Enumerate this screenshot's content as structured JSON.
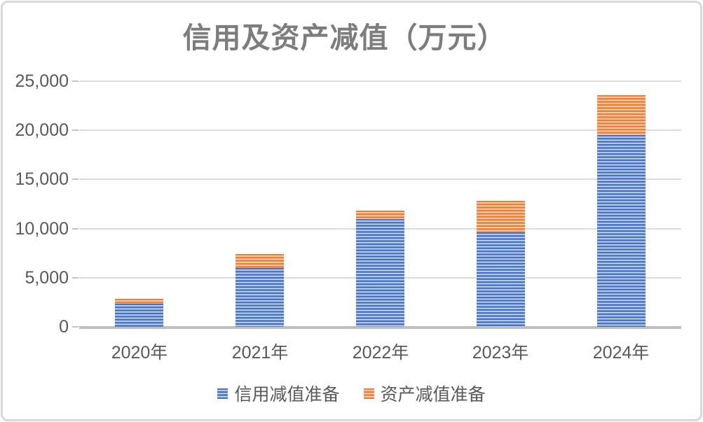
{
  "chart_data": {
    "type": "bar",
    "stacked": true,
    "title": "信用及资产减值（万元）",
    "categories": [
      "2020年",
      "2021年",
      "2022年",
      "2023年",
      "2024年"
    ],
    "series": [
      {
        "name": "信用减值准备",
        "key": "credit-impairment",
        "color": "#4472C4",
        "stripe_light_color": "#E8EEF9",
        "values": [
          2350,
          6000,
          11000,
          9600,
          19500
        ]
      },
      {
        "name": "资产减值准备",
        "key": "asset-impairment",
        "color": "#ED7D31",
        "stripe_light_color": "#FDEADD",
        "values": [
          500,
          1400,
          800,
          3200,
          4100
        ]
      }
    ],
    "xlabel": "",
    "ylabel": "",
    "ylim": [
      0,
      25000
    ],
    "ytick_step": 5000,
    "ytick_labels": [
      "0",
      "5,000",
      "10,000",
      "15,000",
      "20,000",
      "25,000"
    ],
    "grid": true,
    "legend_position": "bottom"
  },
  "style_colors": {
    "title_text": "#7D7D7D",
    "axis_text": "#595959",
    "gridline": "#DCDCDC",
    "axis_line": "#BFBFBF",
    "frame_border": "#D9D9D9",
    "background": "#FFFFFF"
  }
}
